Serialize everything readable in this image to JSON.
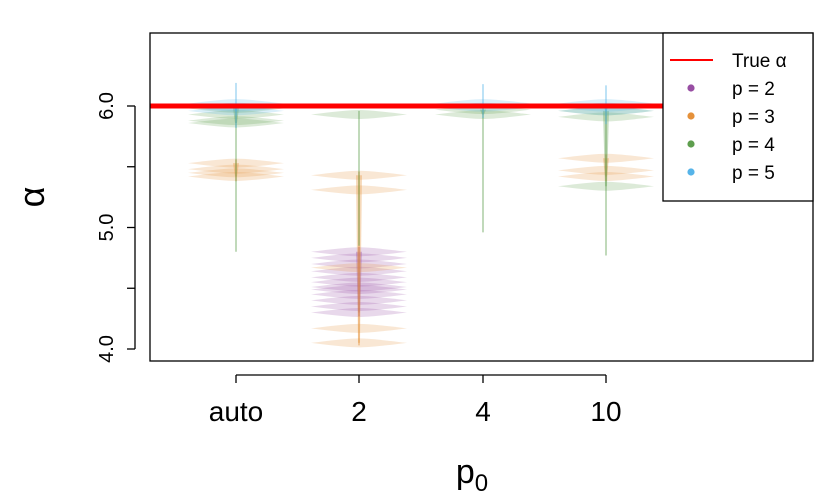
{
  "chart_data": {
    "type": "violin",
    "xlabel": "p",
    "xlabel_sub": "0",
    "ylabel": "α",
    "categories": [
      "auto",
      "2",
      "4",
      "10"
    ],
    "ylim": [
      3.98,
      6.6
    ],
    "yticks": [
      4.0,
      4.5,
      5.0,
      5.5,
      6.0
    ],
    "ytick_labels": [
      "4.0",
      "",
      "5.0",
      "",
      "6.0"
    ],
    "reference_line": {
      "label": "True α",
      "value": 6.0,
      "color": "#ff0000"
    },
    "legend": {
      "position": "top-right",
      "entries": [
        {
          "label": "True α",
          "kind": "line",
          "color": "#ff0000"
        },
        {
          "label": "p = 2",
          "kind": "point",
          "color": "#984ea3"
        },
        {
          "label": "p = 3",
          "kind": "point",
          "color": "#e5913a"
        },
        {
          "label": "p = 4",
          "kind": "point",
          "color": "#5e9e4e"
        },
        {
          "label": "p = 5",
          "kind": "point",
          "color": "#56b4e9"
        }
      ]
    },
    "series": [
      {
        "name": "p = 2",
        "color": "#984ea3",
        "violins": [
          {
            "category": "2",
            "bands": [
              4.8,
              4.75,
              4.7,
              4.64,
              4.59,
              4.55,
              4.51,
              4.49,
              4.45,
              4.4,
              4.35,
              4.3
            ],
            "ymin": 4.27,
            "ymax": 4.84
          }
        ]
      },
      {
        "name": "p = 3",
        "color": "#e5913a",
        "violins": [
          {
            "category": "auto",
            "bands": [
              5.53,
              5.48,
              5.45,
              5.42
            ],
            "ymin": 5.38,
            "ymax": 5.56
          },
          {
            "category": "2",
            "bands": [
              5.43,
              5.31,
              4.67,
              4.17,
              4.05
            ],
            "ymin": 4.03,
            "ymax": 5.46
          },
          {
            "category": "10",
            "bands": [
              5.57,
              5.47,
              5.42
            ],
            "ymin": 5.38,
            "ymax": 5.6
          }
        ]
      },
      {
        "name": "p = 4",
        "color": "#5e9e4e",
        "violins": [
          {
            "category": "auto",
            "bands": [
              5.98,
              5.93,
              5.88,
              5.86
            ],
            "ymin": 4.8,
            "ymax": 6.0
          },
          {
            "category": "2",
            "bands": [
              5.93
            ],
            "ymin": 4.85,
            "ymax": 5.96
          },
          {
            "category": "4",
            "bands": [
              5.97,
              5.93
            ],
            "ymin": 4.96,
            "ymax": 6.0
          },
          {
            "category": "10",
            "bands": [
              5.96,
              5.91,
              5.34
            ],
            "ymin": 4.77,
            "ymax": 6.0
          }
        ]
      },
      {
        "name": "p = 5",
        "color": "#56b4e9",
        "violins": [
          {
            "category": "auto",
            "bands": [
              6.02,
              5.99,
              5.96
            ],
            "ymin": 5.82,
            "ymax": 6.19
          },
          {
            "category": "4",
            "bands": [
              6.02,
              5.99
            ],
            "ymin": 5.9,
            "ymax": 6.18
          },
          {
            "category": "10",
            "bands": [
              6.02,
              5.99,
              5.96
            ],
            "ymin": 5.85,
            "ymax": 6.17
          }
        ]
      }
    ]
  }
}
